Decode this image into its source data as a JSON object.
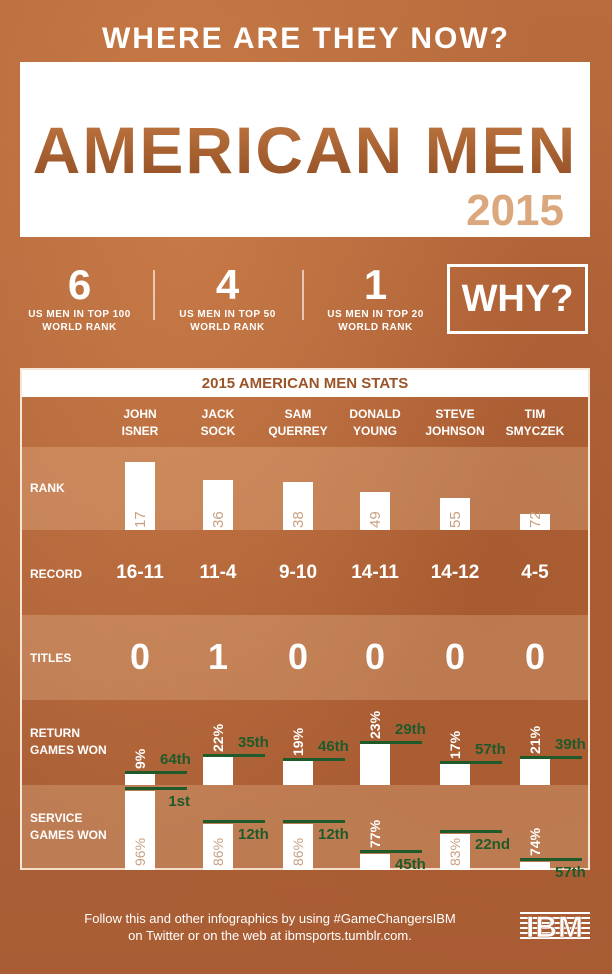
{
  "header": {
    "title": "WHERE ARE THEY NOW?",
    "hero_title": "AMERICAN MEN",
    "hero_year": "2015"
  },
  "stats": [
    {
      "number": "6",
      "label1": "US MEN IN TOP 100",
      "label2": "WORLD RANK"
    },
    {
      "number": "4",
      "label1": "US MEN IN TOP 50",
      "label2": "WORLD RANK"
    },
    {
      "number": "1",
      "label1": "US MEN IN TOP 20",
      "label2": "WORLD RANK"
    }
  ],
  "why_button": "WHY?",
  "colors": {
    "background": "#b0643a",
    "accent_brown": "#9a5428",
    "rank_green": "#1f5a2a",
    "year_tan": "#dba87e"
  },
  "chart_data": {
    "type": "table",
    "title": "2015 AMERICAN MEN STATS",
    "row_labels": {
      "rank": "RANK",
      "record": "RECORD",
      "titles": "TITLES",
      "return1": "RETURN",
      "return2": "GAMES WON",
      "service1": "SERVICE",
      "service2": "GAMES WON"
    },
    "players": [
      {
        "first": "JOHN",
        "last": "ISNER",
        "rank": 17,
        "record": "16-11",
        "titles": "0",
        "return_pct": 9,
        "return_rank": "64th",
        "service_pct": 96,
        "service_rank": "1st"
      },
      {
        "first": "JACK",
        "last": "SOCK",
        "rank": 36,
        "record": "11-4",
        "titles": "1",
        "return_pct": 22,
        "return_rank": "35th",
        "service_pct": 86,
        "service_rank": "12th"
      },
      {
        "first": "SAM",
        "last": "QUERREY",
        "rank": 38,
        "record": "9-10",
        "titles": "0",
        "return_pct": 19,
        "return_rank": "46th",
        "service_pct": 86,
        "service_rank": "12th"
      },
      {
        "first": "DONALD",
        "last": "YOUNG",
        "rank": 49,
        "record": "14-11",
        "titles": "0",
        "return_pct": 23,
        "return_rank": "29th",
        "service_pct": 77,
        "service_rank": "45th"
      },
      {
        "first": "STEVE",
        "last": "JOHNSON",
        "rank": 55,
        "record": "14-12",
        "titles": "0",
        "return_pct": 17,
        "return_rank": "57th",
        "service_pct": 83,
        "service_rank": "22nd"
      },
      {
        "first": "TIM",
        "last": "SMYCZEK",
        "rank": 72,
        "record": "4-5",
        "titles": "0",
        "return_pct": 21,
        "return_rank": "39th",
        "service_pct": 74,
        "service_rank": "57th"
      }
    ]
  },
  "footer": {
    "line1": "Follow this and other infographics by using #GameChangersIBM",
    "line2": "on Twitter or on the web at ibmsports.tumblr.com.",
    "logo": "IBM"
  }
}
